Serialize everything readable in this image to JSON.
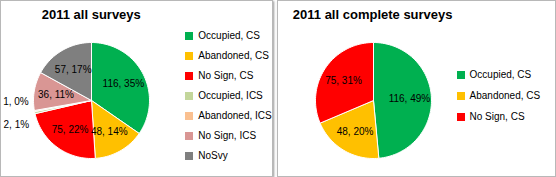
{
  "chart_data": [
    {
      "type": "pie",
      "title": "2011 all surveys",
      "categories": [
        "Occupied, CS",
        "Abandoned, CS",
        "No Sign, CS",
        "Occupied, ICS",
        "Abandoned, ICS",
        "No Sign, ICS",
        "NoSvy"
      ],
      "values": [
        116,
        48,
        75,
        2,
        1,
        36,
        57
      ],
      "value_labels": [
        "116, 35%",
        "48, 14%",
        "75, 22%",
        "2, 1%",
        "1, 0%",
        "36, 11%",
        "57, 17%"
      ],
      "colors": [
        "#00b050",
        "#ffc000",
        "#ff0000",
        "#c3d69b",
        "#fac090",
        "#d99694",
        "#7f7f7f"
      ],
      "data_labels": true,
      "legend": "right"
    },
    {
      "type": "pie",
      "title": "2011 all complete surveys",
      "categories": [
        "Occupied, CS",
        "Abandoned, CS",
        "No Sign, CS"
      ],
      "values": [
        116,
        48,
        75
      ],
      "value_labels": [
        "116, 49%",
        "48, 20%",
        "75, 31%"
      ],
      "colors": [
        "#00b050",
        "#ffc000",
        "#ff0000"
      ],
      "data_labels": true,
      "legend": "right"
    }
  ]
}
